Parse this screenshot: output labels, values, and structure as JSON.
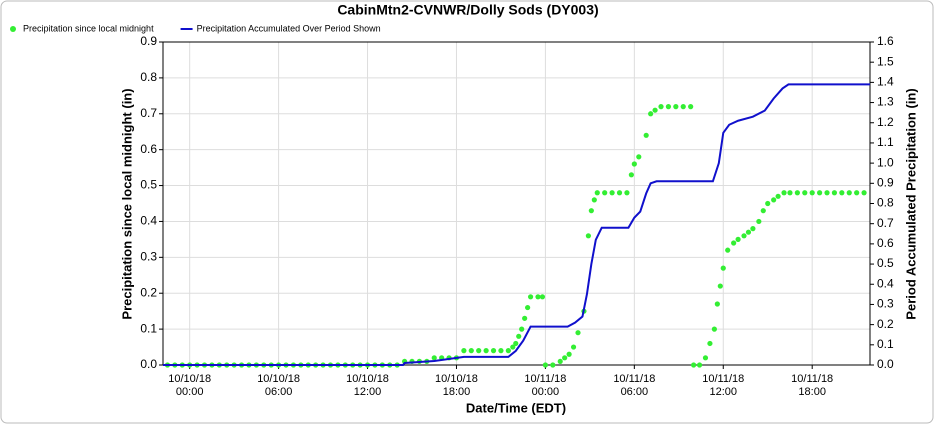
{
  "chart_data": {
    "type": "scatter+line",
    "title": "CabinMtn2-CVNWR/Dolly Sods (DY003)",
    "xlabel": "Date/Time (EDT)",
    "ylabel": "Precipitation since local midnight (in)",
    "y2label": "Period Accumulated Precipitation (in)",
    "xlim": [
      -1.8,
      45.9
    ],
    "xticks": [
      {
        "value": 0,
        "label": "10/10/18\n00:00"
      },
      {
        "value": 6,
        "label": "10/10/18\n06:00"
      },
      {
        "value": 12,
        "label": "10/10/18\n12:00"
      },
      {
        "value": 18,
        "label": "10/10/18\n18:00"
      },
      {
        "value": 24,
        "label": "10/11/18\n00:00"
      },
      {
        "value": 30,
        "label": "10/11/18\n06:00"
      },
      {
        "value": 36,
        "label": "10/11/18\n12:00"
      },
      {
        "value": 42,
        "label": "10/11/18\n18:00"
      }
    ],
    "ylim": [
      0,
      0.9
    ],
    "yticks": [
      {
        "value": 0,
        "label": "0.0"
      },
      0.1,
      0.2,
      0.3,
      0.4,
      0.5,
      0.6,
      0.7,
      0.8,
      0.9
    ],
    "y2lim": [
      0,
      1.6
    ],
    "y2ticks": [
      {
        "value": 0,
        "label": "0.0"
      },
      0.1,
      0.2,
      0.3,
      0.4,
      0.5,
      0.6,
      0.7,
      0.8,
      0.9,
      {
        "value": 1,
        "label": "1.0"
      },
      1.1,
      1.2,
      1.3,
      1.4,
      1.5,
      1.6
    ],
    "grid": true,
    "legend": "top-left",
    "series": [
      {
        "name": "Precipitation since local midnight",
        "color": "#33ee33",
        "type": "scatter",
        "x": [
          -1.5,
          -1,
          -0.5,
          0,
          0.5,
          1,
          1.5,
          2,
          2.5,
          3,
          3.5,
          4,
          4.5,
          5,
          5.5,
          6,
          6.5,
          7,
          7.5,
          8,
          8.5,
          9,
          9.5,
          10,
          10.5,
          11,
          11.5,
          12,
          12.5,
          13,
          13.5,
          14,
          14.5,
          15,
          15.5,
          16,
          16.5,
          17,
          17.5,
          18,
          18.5,
          19,
          19.5,
          20,
          20.5,
          21,
          21.5,
          21.8,
          22,
          22.2,
          22.4,
          22.6,
          22.8,
          23,
          23.5,
          23.8,
          24,
          24.5,
          25,
          25.3,
          25.6,
          25.9,
          26.2,
          26.6,
          26.9,
          27.1,
          27.3,
          27.5,
          28,
          28.5,
          29,
          29.5,
          29.8,
          30,
          30.3,
          30.8,
          31.1,
          31.4,
          31.8,
          32.3,
          32.8,
          33.3,
          33.8,
          34,
          34.4,
          34.8,
          35.1,
          35.4,
          35.6,
          35.8,
          36,
          36.3,
          36.7,
          37,
          37.4,
          37.7,
          38,
          38.4,
          38.7,
          39,
          39.4,
          39.7,
          40.1,
          40.5,
          41,
          41.5,
          42,
          42.5,
          43,
          43.5,
          44,
          44.5,
          45,
          45.5
        ],
        "values": [
          0,
          0,
          0,
          0,
          0,
          0,
          0,
          0,
          0,
          0,
          0,
          0,
          0,
          0,
          0,
          0,
          0,
          0,
          0,
          0,
          0,
          0,
          0,
          0,
          0,
          0,
          0,
          0,
          0,
          0,
          0,
          0,
          0.01,
          0.01,
          0.01,
          0.01,
          0.02,
          0.02,
          0.02,
          0.02,
          0.04,
          0.04,
          0.04,
          0.04,
          0.04,
          0.04,
          0.04,
          0.05,
          0.06,
          0.08,
          0.1,
          0.13,
          0.16,
          0.19,
          0.19,
          0.19,
          0,
          0,
          0.01,
          0.02,
          0.03,
          0.05,
          0.09,
          0.15,
          0.36,
          0.43,
          0.46,
          0.48,
          0.48,
          0.48,
          0.48,
          0.48,
          0.53,
          0.56,
          0.58,
          0.64,
          0.7,
          0.71,
          0.72,
          0.72,
          0.72,
          0.72,
          0.72,
          0,
          0,
          0.02,
          0.06,
          0.1,
          0.17,
          0.22,
          0.27,
          0.32,
          0.34,
          0.35,
          0.36,
          0.37,
          0.38,
          0.4,
          0.43,
          0.45,
          0.46,
          0.47,
          0.48,
          0.48,
          0.48,
          0.48,
          0.48,
          0.48,
          0.48,
          0.48,
          0.48,
          0.48,
          0.48,
          0.48
        ]
      },
      {
        "name": "Precipitation Accumulated Over Period Shown",
        "color": "#1010cc",
        "type": "line",
        "axis": "y2",
        "x": [
          -1.8,
          14.4,
          14.5,
          16.5,
          18.5,
          21.5,
          22,
          22.5,
          23,
          25.5,
          26,
          26.5,
          26.8,
          27.1,
          27.4,
          27.8,
          29.6,
          30,
          30.4,
          30.8,
          31.1,
          31.5,
          35.3,
          35.7,
          36,
          36.4,
          37,
          38,
          38.8,
          39.4,
          40,
          40.4,
          45.9
        ],
        "values": [
          0,
          0,
          0.01,
          0.02,
          0.04,
          0.04,
          0.07,
          0.12,
          0.19,
          0.19,
          0.21,
          0.24,
          0.35,
          0.5,
          0.62,
          0.68,
          0.68,
          0.73,
          0.76,
          0.85,
          0.9,
          0.91,
          0.91,
          1.0,
          1.15,
          1.19,
          1.21,
          1.23,
          1.26,
          1.32,
          1.37,
          1.39,
          1.39
        ]
      }
    ]
  }
}
